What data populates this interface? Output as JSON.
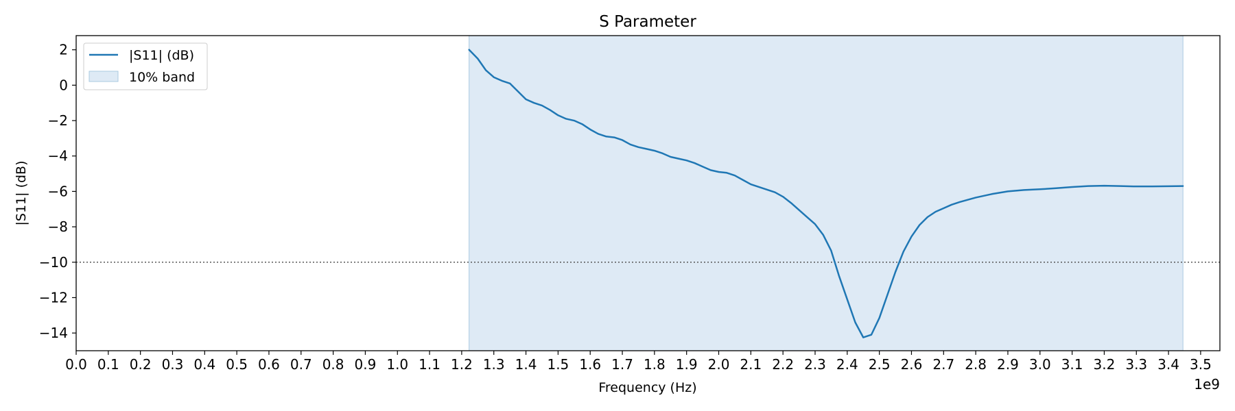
{
  "chart_data": {
    "type": "line",
    "title": "S Parameter",
    "xlabel": "Frequency (Hz)",
    "ylabel": "|S11| (dB)",
    "x_offset_text": "1e9",
    "xlim": [
      0.0,
      3.56
    ],
    "ylim": [
      -15.0,
      2.8
    ],
    "x_ticks": [
      0.0,
      0.1,
      0.2,
      0.3,
      0.4,
      0.5,
      0.6,
      0.7,
      0.8,
      0.9,
      1.0,
      1.1,
      1.2,
      1.3,
      1.4,
      1.5,
      1.6,
      1.7,
      1.8,
      1.9,
      2.0,
      2.1,
      2.2,
      2.3,
      2.4,
      2.5,
      2.6,
      2.7,
      2.8,
      2.9,
      3.0,
      3.1,
      3.2,
      3.3,
      3.4,
      3.5
    ],
    "x_tick_labels": [
      "0.0",
      "0.1",
      "0.2",
      "0.3",
      "0.4",
      "0.5",
      "0.6",
      "0.7",
      "0.8",
      "0.9",
      "1.0",
      "1.1",
      "1.2",
      "1.3",
      "1.4",
      "1.5",
      "1.6",
      "1.7",
      "1.8",
      "1.9",
      "2.0",
      "2.1",
      "2.2",
      "2.3",
      "2.4",
      "2.5",
      "2.6",
      "2.7",
      "2.8",
      "2.9",
      "3.0",
      "3.1",
      "3.2",
      "3.3",
      "3.4",
      "3.5"
    ],
    "y_ticks": [
      2,
      0,
      -2,
      -4,
      -6,
      -8,
      -10,
      -12,
      -14
    ],
    "y_tick_labels": [
      "2",
      "0",
      "−2",
      "−4",
      "−6",
      "−8",
      "−10",
      "−12",
      "−14"
    ],
    "grid": false,
    "legend_position": "top-left",
    "legend": [
      {
        "label": "|S11| (dB)",
        "kind": "line"
      },
      {
        "label": "10% band",
        "kind": "patch"
      }
    ],
    "band": {
      "x_start": 1.223,
      "x_end": 3.445,
      "color": "#deeaf5",
      "edge_color": "#aac9e0"
    },
    "threshold": {
      "y": -10,
      "style": "dotted",
      "color": "#555555"
    },
    "series": [
      {
        "name": "|S11| (dB)",
        "color": "#1f77b4",
        "x": [
          1.223,
          1.25,
          1.275,
          1.3,
          1.325,
          1.35,
          1.375,
          1.4,
          1.425,
          1.45,
          1.475,
          1.5,
          1.525,
          1.55,
          1.575,
          1.6,
          1.625,
          1.65,
          1.675,
          1.7,
          1.725,
          1.75,
          1.775,
          1.8,
          1.825,
          1.85,
          1.875,
          1.9,
          1.925,
          1.95,
          1.975,
          2.0,
          2.025,
          2.05,
          2.075,
          2.1,
          2.125,
          2.15,
          2.175,
          2.2,
          2.225,
          2.25,
          2.275,
          2.3,
          2.325,
          2.35,
          2.375,
          2.4,
          2.425,
          2.45,
          2.475,
          2.5,
          2.525,
          2.55,
          2.575,
          2.6,
          2.625,
          2.65,
          2.675,
          2.7,
          2.725,
          2.75,
          2.8,
          2.85,
          2.9,
          2.95,
          3.0,
          3.05,
          3.1,
          3.15,
          3.2,
          3.25,
          3.3,
          3.35,
          3.4,
          3.445
        ],
        "y": [
          2.0,
          1.5,
          0.85,
          0.45,
          0.25,
          0.1,
          -0.35,
          -0.8,
          -1.0,
          -1.15,
          -1.4,
          -1.7,
          -1.9,
          -2.0,
          -2.2,
          -2.5,
          -2.75,
          -2.9,
          -2.95,
          -3.1,
          -3.35,
          -3.5,
          -3.6,
          -3.7,
          -3.85,
          -4.05,
          -4.15,
          -4.25,
          -4.4,
          -4.6,
          -4.8,
          -4.9,
          -4.95,
          -5.1,
          -5.35,
          -5.6,
          -5.75,
          -5.9,
          -6.05,
          -6.3,
          -6.65,
          -7.05,
          -7.45,
          -7.85,
          -8.45,
          -9.35,
          -10.8,
          -12.1,
          -13.4,
          -14.25,
          -14.1,
          -13.15,
          -11.85,
          -10.55,
          -9.4,
          -8.55,
          -7.9,
          -7.45,
          -7.15,
          -6.95,
          -6.75,
          -6.6,
          -6.35,
          -6.15,
          -6.0,
          -5.92,
          -5.88,
          -5.82,
          -5.75,
          -5.7,
          -5.68,
          -5.7,
          -5.72,
          -5.72,
          -5.71,
          -5.7
        ]
      }
    ]
  }
}
